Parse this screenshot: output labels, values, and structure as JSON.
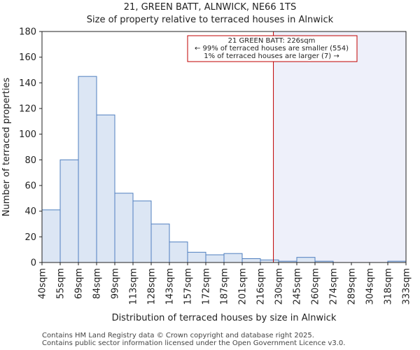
{
  "chart_data": {
    "type": "bar",
    "title_lines": [
      "21, GREEN BATT, ALNWICK, NE66 1TS",
      "Size of property relative to terraced houses in Alnwick"
    ],
    "xlabel": "Distribution of terraced houses by size in Alnwick",
    "ylabel": "Number of terraced properties",
    "ylim": [
      0,
      180
    ],
    "yticks": [
      0,
      20,
      40,
      60,
      80,
      100,
      120,
      140,
      160,
      180
    ],
    "bin_edges": [
      40,
      55,
      69,
      84,
      99,
      113,
      128,
      143,
      157,
      172,
      187,
      201,
      216,
      230,
      245,
      260,
      274,
      289,
      304,
      318,
      333
    ],
    "tick_labels": [
      "40sqm",
      "55sqm",
      "69sqm",
      "84sqm",
      "99sqm",
      "113sqm",
      "128sqm",
      "143sqm",
      "157sqm",
      "172sqm",
      "187sqm",
      "201sqm",
      "216sqm",
      "230sqm",
      "245sqm",
      "260sqm",
      "274sqm",
      "289sqm",
      "304sqm",
      "318sqm",
      "333sqm"
    ],
    "values": [
      41,
      80,
      145,
      115,
      54,
      48,
      30,
      16,
      8,
      6,
      7,
      3,
      2,
      1,
      4,
      1,
      0,
      0,
      0,
      1
    ],
    "marker": {
      "value": 226,
      "lines": [
        "21 GREEN BATT: 226sqm",
        "← 99% of terraced houses are smaller (554)",
        "1% of terraced houses are larger (7) →"
      ]
    },
    "colors": {
      "bar_fill": "#dce6f4",
      "bar_edge": "#4f7fbf",
      "marker": "#c00000",
      "highlight": "#eef0fa"
    }
  },
  "footer": {
    "line1": "Contains HM Land Registry data © Crown copyright and database right 2025.",
    "line2": "Contains public sector information licensed under the Open Government Licence v3.0."
  }
}
